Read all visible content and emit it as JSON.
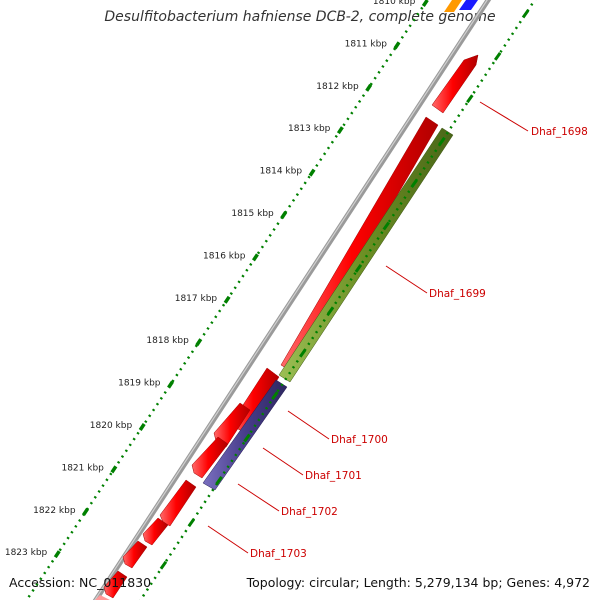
{
  "title": "Desulfitobacterium hafniense DCB-2, complete genome",
  "footer": {
    "accession": "Accession: NC_011830",
    "summary": "Topology: circular; Length: 5,279,134 bp; Genes: 4,972"
  },
  "ticks": [
    {
      "label": "1810 kbp",
      "kbp": 1810
    },
    {
      "label": "1811 kbp",
      "kbp": 1811
    },
    {
      "label": "1812 kbp",
      "kbp": 1812
    },
    {
      "label": "1813 kbp",
      "kbp": 1813
    },
    {
      "label": "1814 kbp",
      "kbp": 1814
    },
    {
      "label": "1815 kbp",
      "kbp": 1815
    },
    {
      "label": "1816 kbp",
      "kbp": 1816
    },
    {
      "label": "1817 kbp",
      "kbp": 1817
    },
    {
      "label": "1818 kbp",
      "kbp": 1818
    },
    {
      "label": "1819 kbp",
      "kbp": 1819
    },
    {
      "label": "1820 kbp",
      "kbp": 1820
    },
    {
      "label": "1821 kbp",
      "kbp": 1821
    },
    {
      "label": "1822 kbp",
      "kbp": 1822
    },
    {
      "label": "1823 kbp",
      "kbp": 1823
    }
  ],
  "gene_labels": [
    {
      "label": "Dhaf_1698",
      "color": "#cc0000"
    },
    {
      "label": "Dhaf_1699",
      "color": "#cc0000"
    },
    {
      "label": "Dhaf_1700",
      "color": "#cc0000"
    },
    {
      "label": "Dhaf_1701",
      "color": "#cc0000"
    },
    {
      "label": "Dhaf_1702",
      "color": "#cc0000"
    },
    {
      "label": "Dhaf_1703",
      "color": "#cc0000"
    }
  ],
  "colors": {
    "cds_red": "#ff0000",
    "cds_olive": "#6b8e23",
    "cds_slate": "#483d8b",
    "cds_blue": "#1a1aff",
    "cds_orange": "#ff9900",
    "backbone": "#808080",
    "tick_green": "#008000",
    "label_red": "#cc0000"
  }
}
